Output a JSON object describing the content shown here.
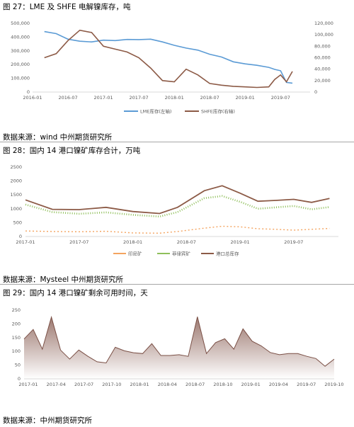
{
  "figures": [
    {
      "title": "图 27：LME 及 SHFE 电解镍库存，吨",
      "source": "数据来源：wind   中州期货研究所"
    },
    {
      "title": "图 28：国内 14 港口镍矿库存合计，万吨",
      "source": "数据来源：Mysteel   中州期货研究所"
    },
    {
      "title": "图 29：国内 14 港口镍矿剩余可用时间，天",
      "source": "数据来源：中州期货研究所"
    }
  ],
  "chart_data": [
    {
      "type": "line",
      "title": "图 27：LME 及 SHFE 电解镍库存，吨",
      "x_tick_labels": [
        "2016-01",
        "2016-07",
        "2017-01",
        "2017-07",
        "2018-01",
        "2018-07",
        "2019-01",
        "2019-07"
      ],
      "y_left_ticks": [
        "0",
        "100,000",
        "200,000",
        "300,000",
        "400,000",
        "500,000"
      ],
      "y_right_ticks": [
        "0",
        "20,000",
        "40,000",
        "60,000",
        "80,000",
        "100,000",
        "120,000"
      ],
      "ylim_left": [
        0,
        500000
      ],
      "ylim_right": [
        0,
        120000
      ],
      "x": [
        "2016-03",
        "2016-05",
        "2016-07",
        "2016-09",
        "2016-11",
        "2017-01",
        "2017-03",
        "2017-05",
        "2017-07",
        "2017-09",
        "2017-11",
        "2018-01",
        "2018-03",
        "2018-05",
        "2018-07",
        "2018-09",
        "2018-11",
        "2019-01",
        "2019-03",
        "2019-05",
        "2019-06",
        "2019-07",
        "2019-08",
        "2019-09"
      ],
      "series": [
        {
          "name": "LME库存(左轴)",
          "axis": "left",
          "color": "#5b9bd5",
          "values": [
            440000,
            425000,
            385000,
            370000,
            365000,
            378000,
            375000,
            383000,
            382000,
            385000,
            365000,
            340000,
            320000,
            305000,
            275000,
            255000,
            220000,
            205000,
            195000,
            180000,
            165000,
            155000,
            70000,
            65000
          ]
        },
        {
          "name": "SHFE库存(右轴)",
          "axis": "right",
          "color": "#8c5a46",
          "values": [
            60000,
            67000,
            90000,
            108000,
            104000,
            80000,
            75000,
            70000,
            60000,
            42000,
            20000,
            18000,
            40000,
            30000,
            15000,
            12000,
            10000,
            9000,
            8000,
            9000,
            22000,
            30000,
            18000,
            36000
          ]
        }
      ]
    },
    {
      "type": "line",
      "title": "图 28：国内 14 港口镍矿库存合计，万吨",
      "x_tick_labels": [
        "2017-01",
        "2017-07",
        "2018-01",
        "2018-07",
        "2019-01",
        "2019-07"
      ],
      "y_ticks": [
        "0",
        "500",
        "1000",
        "1500",
        "2000",
        "2500"
      ],
      "ylim": [
        0,
        2500
      ],
      "x": [
        "2017-01",
        "2017-04",
        "2017-07",
        "2017-10",
        "2018-01",
        "2018-04",
        "2018-06",
        "2018-09",
        "2018-11",
        "2019-01",
        "2019-03",
        "2019-05",
        "2019-07",
        "2019-09",
        "2019-11"
      ],
      "series": [
        {
          "name": "印尼矿",
          "color": "#f4a460",
          "values": [
            200,
            180,
            170,
            190,
            130,
            120,
            180,
            300,
            370,
            350,
            280,
            260,
            230,
            260,
            290
          ]
        },
        {
          "name": "菲律宾矿",
          "color": "#8fbf5a",
          "values": [
            1150,
            880,
            820,
            870,
            780,
            720,
            880,
            1380,
            1460,
            1250,
            1000,
            1050,
            1100,
            980,
            1060
          ]
        },
        {
          "name": "港口总库存",
          "color": "#8c5a46",
          "values": [
            1320,
            980,
            970,
            1050,
            900,
            830,
            1050,
            1650,
            1830,
            1560,
            1270,
            1300,
            1340,
            1230,
            1370
          ]
        }
      ]
    },
    {
      "type": "area",
      "title": "图 29：国内 14 港口镍矿剩余可用时间，天",
      "x_tick_labels": [
        "2017-01",
        "2017-04",
        "2017-07",
        "2017-10",
        "2018-01",
        "2018-04",
        "2018-07",
        "2018-10",
        "2019-01",
        "2019-04",
        "2019-07",
        "2019-10"
      ],
      "y_ticks": [
        "0",
        "50",
        "100",
        "150",
        "200",
        "250"
      ],
      "ylim": [
        0,
        250
      ],
      "series": [
        {
          "name": "",
          "color": "#8c6258",
          "values": [
            145,
            180,
            108,
            225,
            105,
            72,
            105,
            82,
            62,
            58,
            115,
            102,
            95,
            92,
            128,
            85,
            85,
            88,
            82,
            226,
            92,
            132,
            146,
            108,
            182,
            137,
            120,
            96,
            88,
            92,
            92,
            82,
            74,
            46,
            72
          ]
        }
      ]
    }
  ]
}
